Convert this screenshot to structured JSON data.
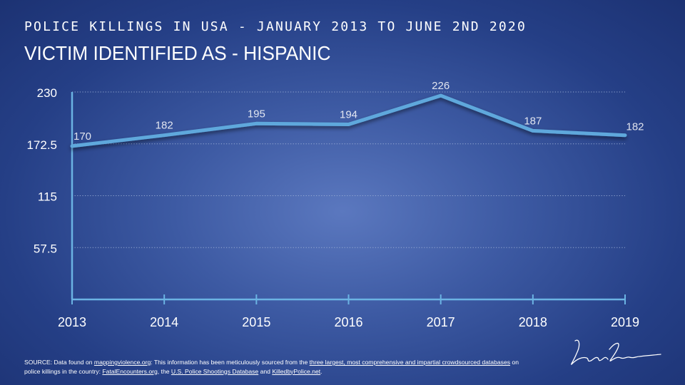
{
  "header": {
    "supertitle": "POLICE KILLINGS IN USA - JANUARY 2013 TO JUNE 2ND 2020",
    "title": "VICTIM IDENTIFIED AS - HISPANIC"
  },
  "chart_data": {
    "type": "line",
    "title": "VICTIM IDENTIFIED AS - HISPANIC",
    "categories": [
      "2013",
      "2014",
      "2015",
      "2016",
      "2017",
      "2018",
      "2019"
    ],
    "values": [
      170,
      182,
      195,
      194,
      226,
      187,
      182
    ],
    "data_labels": [
      "170",
      "182",
      "195",
      "194",
      "226",
      "187",
      "182"
    ],
    "yticks": [
      57.5,
      115,
      172.5,
      230
    ],
    "ytick_labels": [
      "57.5",
      "115",
      "172.5",
      "230"
    ],
    "ylim": [
      0,
      230
    ],
    "grid": "horizontal dotted",
    "xlabel": "",
    "ylabel": "",
    "colors": {
      "line": "#5fa8dc",
      "axis": "#6bb3e3",
      "grid": "#9fb2d8"
    }
  },
  "source": {
    "prefix": "SOURCE: Data found on ",
    "link1": "mappingviolence.org",
    "mid1": ": This information has been meticulously sourced from the ",
    "link2": "three largest, most comprehensive and impartial crowdsourced databases",
    "mid2": " on police killings in the country: ",
    "link3": "FatalEncounters.org",
    "mid3": ", the ",
    "link4": "U.S. Police Shootings Database",
    "mid4": " and ",
    "link5": "KilledbyPolice.net",
    "suffix": "."
  },
  "signature": {
    "icon": "signature-mark"
  }
}
